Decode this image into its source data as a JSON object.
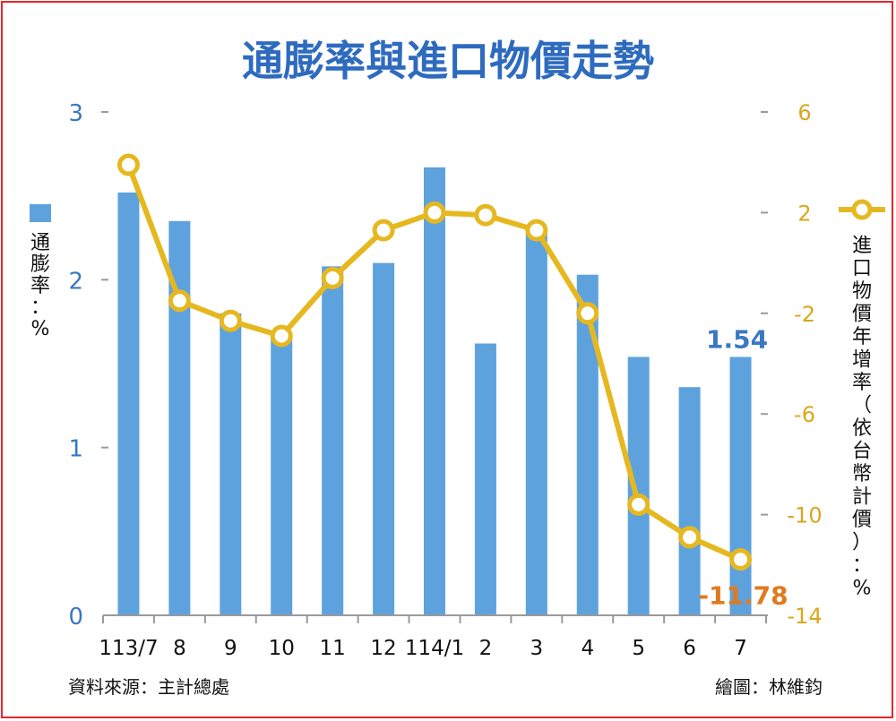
{
  "chart_data": {
    "type": "bar+line",
    "title": "通膨率與進口物價走勢",
    "categories": [
      "113/7",
      "8",
      "9",
      "10",
      "11",
      "12",
      "114/1",
      "2",
      "3",
      "4",
      "5",
      "6",
      "7"
    ],
    "series": [
      {
        "name": "通膨率：%",
        "type": "bar",
        "axis": "left",
        "color": "#5ea2dd",
        "values": [
          2.52,
          2.35,
          1.8,
          1.67,
          2.08,
          2.1,
          2.67,
          1.62,
          2.29,
          2.03,
          1.54,
          1.36,
          1.54
        ]
      },
      {
        "name": "進口物價年增率（依台幣計價）：%",
        "type": "line",
        "axis": "right",
        "color": "#e6b820",
        "values": [
          3.9,
          -1.5,
          -2.3,
          -2.9,
          -0.6,
          1.3,
          2.0,
          1.9,
          1.3,
          -2.0,
          -9.6,
          -10.9,
          -11.78
        ]
      }
    ],
    "left_axis": {
      "min": 0,
      "max": 3,
      "ticks": [
        0,
        1,
        2,
        3
      ],
      "label": "通膨率：%"
    },
    "right_axis": {
      "min": -14,
      "max": 6,
      "ticks": [
        -14,
        -10,
        -6,
        -2,
        2,
        6
      ],
      "label": "進口物價年增率（依台幣計價）：%"
    },
    "annotations": [
      {
        "text": "1.54",
        "series": 0,
        "index": 12,
        "color": "#3a78c2"
      },
      {
        "text": "-11.78",
        "series": 1,
        "index": 12,
        "color": "#e07a1f"
      }
    ],
    "grid": false,
    "legend": "sides"
  },
  "source_text": "資料來源：主計總處",
  "credit_text": "繪圖：林維鈞"
}
